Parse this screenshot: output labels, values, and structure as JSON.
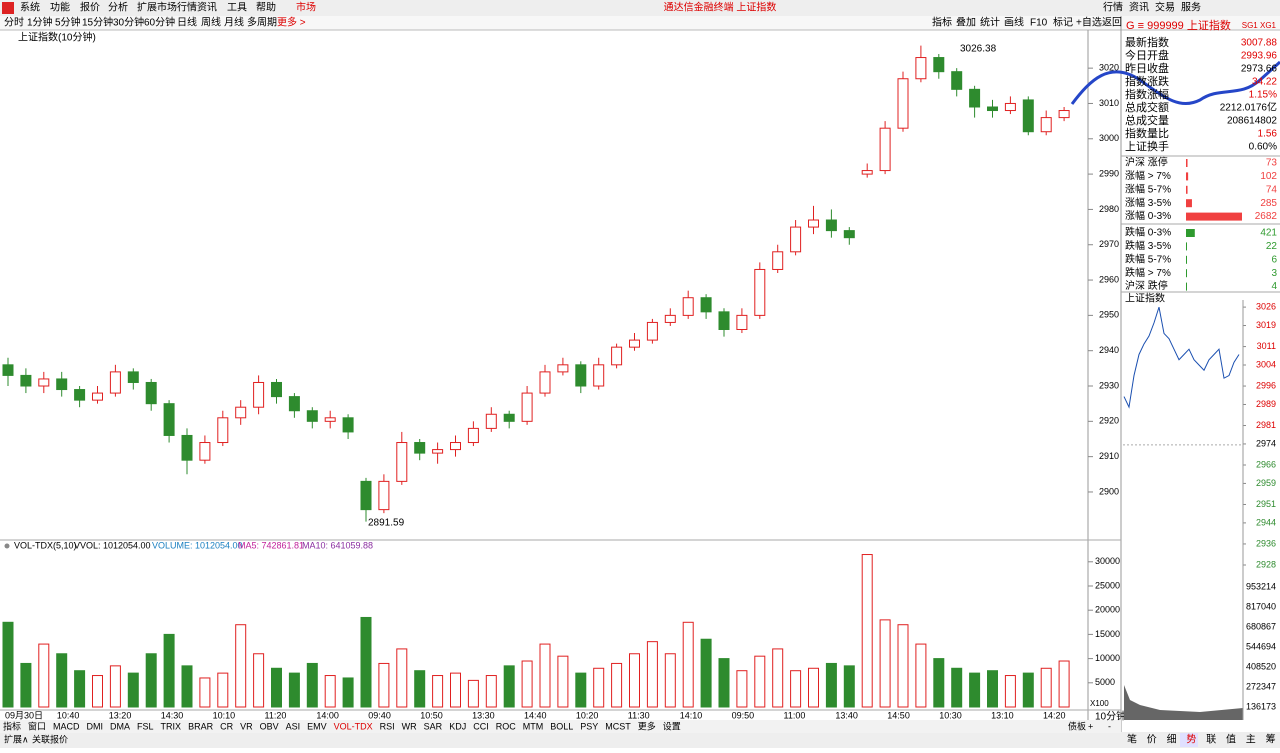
{
  "menu": {
    "items": [
      "系统",
      "功能",
      "报价",
      "分析",
      "扩展市场行情",
      "资讯",
      "工具",
      "帮助"
    ],
    "market": "市场",
    "center": "通达信金融终端  上证指数",
    "right": [
      "行情",
      "资讯",
      "交易",
      "服务"
    ]
  },
  "periods": [
    "分时",
    "1分钟",
    "5分钟",
    "15分钟",
    "30分钟",
    "60分钟",
    "日线",
    "周线",
    "月线",
    "多周期"
  ],
  "more": "更多 >",
  "toolbar": [
    "指标",
    "叠加",
    "统计",
    "画线",
    "F10",
    "标记",
    "+自选",
    "返回"
  ],
  "chart_data": {
    "type": "candlestick",
    "title": "上证指数(10分钟)",
    "ylim": [
      2886.4,
      3030.8
    ],
    "yticks": [
      2900,
      2910,
      2920,
      2930,
      2940,
      2950,
      2960,
      2970,
      2980,
      2990,
      3000,
      3010,
      3020
    ],
    "annotations": [
      "3026.38",
      "2891.59"
    ],
    "candles": [
      [
        2936,
        2938,
        2930,
        2933
      ],
      [
        2933,
        2935,
        2928,
        2930
      ],
      [
        2930,
        2934,
        2928,
        2932
      ],
      [
        2932,
        2934,
        2927,
        2929
      ],
      [
        2929,
        2930,
        2924,
        2926
      ],
      [
        2926,
        2930,
        2925,
        2928
      ],
      [
        2928,
        2936,
        2927,
        2934
      ],
      [
        2934,
        2935,
        2929,
        2931
      ],
      [
        2931,
        2932,
        2923,
        2925
      ],
      [
        2925,
        2926,
        2914,
        2916
      ],
      [
        2916,
        2918,
        2905,
        2909
      ],
      [
        2909,
        2916,
        2908,
        2914
      ],
      [
        2914,
        2923,
        2913,
        2921
      ],
      [
        2921,
        2926,
        2919,
        2924
      ],
      [
        2924,
        2933,
        2922,
        2931
      ],
      [
        2931,
        2932,
        2925,
        2927
      ],
      [
        2927,
        2928,
        2921,
        2923
      ],
      [
        2923,
        2924,
        2918,
        2920
      ],
      [
        2920,
        2923,
        2918,
        2921
      ],
      [
        2921,
        2922,
        2915,
        2917
      ],
      [
        2903,
        2904,
        2891.59,
        2895
      ],
      [
        2895,
        2905,
        2894,
        2903
      ],
      [
        2903,
        2917,
        2902,
        2914
      ],
      [
        2914,
        2915,
        2909,
        2911
      ],
      [
        2911,
        2914,
        2908,
        2912
      ],
      [
        2912,
        2916,
        2910,
        2914
      ],
      [
        2914,
        2920,
        2913,
        2918
      ],
      [
        2918,
        2924,
        2917,
        2922
      ],
      [
        2922,
        2923,
        2918,
        2920
      ],
      [
        2920,
        2930,
        2919,
        2928
      ],
      [
        2928,
        2936,
        2927,
        2934
      ],
      [
        2934,
        2938,
        2933,
        2936
      ],
      [
        2936,
        2937,
        2928,
        2930
      ],
      [
        2930,
        2938,
        2929,
        2936
      ],
      [
        2936,
        2942,
        2935,
        2941
      ],
      [
        2941,
        2945,
        2940,
        2943
      ],
      [
        2943,
        2949,
        2942,
        2948
      ],
      [
        2948,
        2952,
        2947,
        2950
      ],
      [
        2950,
        2957,
        2949,
        2955
      ],
      [
        2955,
        2956,
        2949,
        2951
      ],
      [
        2951,
        2952,
        2944,
        2946
      ],
      [
        2946,
        2952,
        2945,
        2950
      ],
      [
        2950,
        2965,
        2949,
        2963
      ],
      [
        2963,
        2970,
        2962,
        2968
      ],
      [
        2968,
        2977,
        2967,
        2975
      ],
      [
        2975,
        2981,
        2973,
        2977
      ],
      [
        2977,
        2980,
        2972,
        2974
      ],
      [
        2974,
        2975,
        2970,
        2972
      ],
      [
        2990,
        2993,
        2989,
        2991
      ],
      [
        2991,
        3005,
        2990,
        3003
      ],
      [
        3003,
        3019,
        3002,
        3017
      ],
      [
        3017,
        3026.38,
        3016,
        3023
      ],
      [
        3023,
        3024,
        3017,
        3019
      ],
      [
        3019,
        3020,
        3012,
        3014
      ],
      [
        3014,
        3015,
        3006,
        3009
      ],
      [
        3009,
        3011,
        3006,
        3008
      ],
      [
        3008,
        3012,
        3007,
        3010
      ],
      [
        3011,
        3012,
        3001,
        3002
      ],
      [
        3002,
        3008,
        3001,
        3006
      ],
      [
        3006,
        3009,
        3005,
        3008
      ]
    ],
    "xlabels": [
      "09月30日",
      "10:40",
      "13:20",
      "14:30",
      "10:10",
      "11:20",
      "14:00",
      "09:40",
      "10:50",
      "13:30",
      "14:40",
      "10:20",
      "11:30",
      "14:10",
      "09:50",
      "11:00",
      "13:40",
      "14:50",
      "10:30",
      "13:10",
      "14:20"
    ],
    "volume": {
      "legend": [
        "VOL-TDX(5,10)",
        "VVOL: 1012054.00",
        "VOLUME: 1012054.00",
        "MA5: 742861.81",
        "MA10: 641059.88"
      ],
      "ylim": [
        0,
        32850
      ],
      "yticks": [
        5000,
        10000,
        15000,
        20000,
        25000,
        30000
      ],
      "values": [
        17500,
        9000,
        13000,
        11000,
        7500,
        6500,
        8500,
        7000,
        11000,
        15000,
        8500,
        6000,
        7000,
        17000,
        11000,
        8000,
        7000,
        9000,
        6500,
        6000,
        18500,
        9000,
        12000,
        7500,
        6500,
        7000,
        5500,
        6500,
        8500,
        9500,
        13000,
        10500,
        7000,
        8000,
        9000,
        11000,
        13500,
        11000,
        17500,
        14000,
        10000,
        7500,
        10500,
        12000,
        7500,
        8000,
        9000,
        8500,
        31500,
        18000,
        17000,
        13000,
        10000,
        8000,
        7000,
        7500,
        6500,
        7000,
        8000,
        9500
      ]
    },
    "period_label": "10分钟",
    "scale_label": "X100"
  },
  "indicators": [
    "指标",
    "窗口",
    "MACD",
    "DMI",
    "DMA",
    "FSL",
    "TRIX",
    "BRAR",
    "CR",
    "VR",
    "OBV",
    "ASI",
    "EMV",
    "VOL-TDX",
    "RSI",
    "WR",
    "SAR",
    "KDJ",
    "CCI",
    "ROC",
    "MTM",
    "BOLL",
    "PSY",
    "MCST",
    "更多",
    "设置"
  ],
  "indicator_right": [
    "债板",
    "+",
    "-"
  ],
  "bottom_left": [
    "扩展∧",
    "关联报价"
  ],
  "side": {
    "header": "G  ≡  999999 上证指数",
    "tag": "SG1 XG1",
    "quote": [
      {
        "label": "最新指数",
        "value": "3007.88",
        "color": "#e00000"
      },
      {
        "label": "今日开盘",
        "value": "2993.96",
        "color": "#e00000"
      },
      {
        "label": "昨日收盘",
        "value": "2973.66",
        "color": "#000000"
      },
      {
        "label": "指数涨跌",
        "value": "34.22",
        "color": "#e00000"
      },
      {
        "label": "指数涨幅",
        "value": "1.15%",
        "color": "#e00000"
      },
      {
        "label": "总成交额",
        "value": "2212.0176亿",
        "color": "#000000"
      },
      {
        "label": "总成交量",
        "value": "208614802",
        "color": "#000000"
      },
      {
        "label": "指数量比",
        "value": "1.56",
        "color": "#e00000"
      },
      {
        "label": "上证换手",
        "value": "0.60%",
        "color": "#000000"
      }
    ],
    "stats": [
      {
        "label": "沪深 涨停",
        "value": 73,
        "color": "#f04040"
      },
      {
        "label": "涨幅 > 7%",
        "value": 102,
        "color": "#f04040"
      },
      {
        "label": "涨幅 5-7%",
        "value": 74,
        "color": "#f04040"
      },
      {
        "label": "涨幅 3-5%",
        "value": 285,
        "color": "#f04040"
      },
      {
        "label": "涨幅 0-3%",
        "value": 2682,
        "color": "#f04040"
      },
      {
        "label": "跌幅 0-3%",
        "value": 421,
        "color": "#2e9a2e"
      },
      {
        "label": "跌幅 3-5%",
        "value": 22,
        "color": "#2e9a2e"
      },
      {
        "label": "跌幅 5-7%",
        "value": 6,
        "color": "#2e9a2e"
      },
      {
        "label": "跌幅 > 7%",
        "value": 3,
        "color": "#2e9a2e"
      },
      {
        "label": "沪深 跌停",
        "value": 4,
        "color": "#2e9a2e"
      }
    ],
    "mini": {
      "title": "上证指数",
      "ylim": [
        2922.3,
        3028.7
      ],
      "yticks": [
        3026,
        3019,
        3011,
        3004,
        2996,
        2989,
        2981,
        2974,
        2966,
        2959,
        2951,
        2944,
        2936,
        2928
      ],
      "values": [
        2992,
        2988,
        3000,
        3008,
        3012,
        3015,
        3020,
        3026,
        3016,
        3014,
        3010,
        3006,
        3008,
        3010,
        3006,
        3004,
        3002,
        3006,
        3008,
        3010,
        2999,
        3000,
        3005,
        3008
      ],
      "vticks": [
        953214,
        817040,
        680867,
        544694,
        408520,
        272347,
        136173
      ]
    },
    "tabs": [
      "笔",
      "价",
      "细",
      "势",
      "联",
      "值",
      "主",
      "筹"
    ]
  }
}
